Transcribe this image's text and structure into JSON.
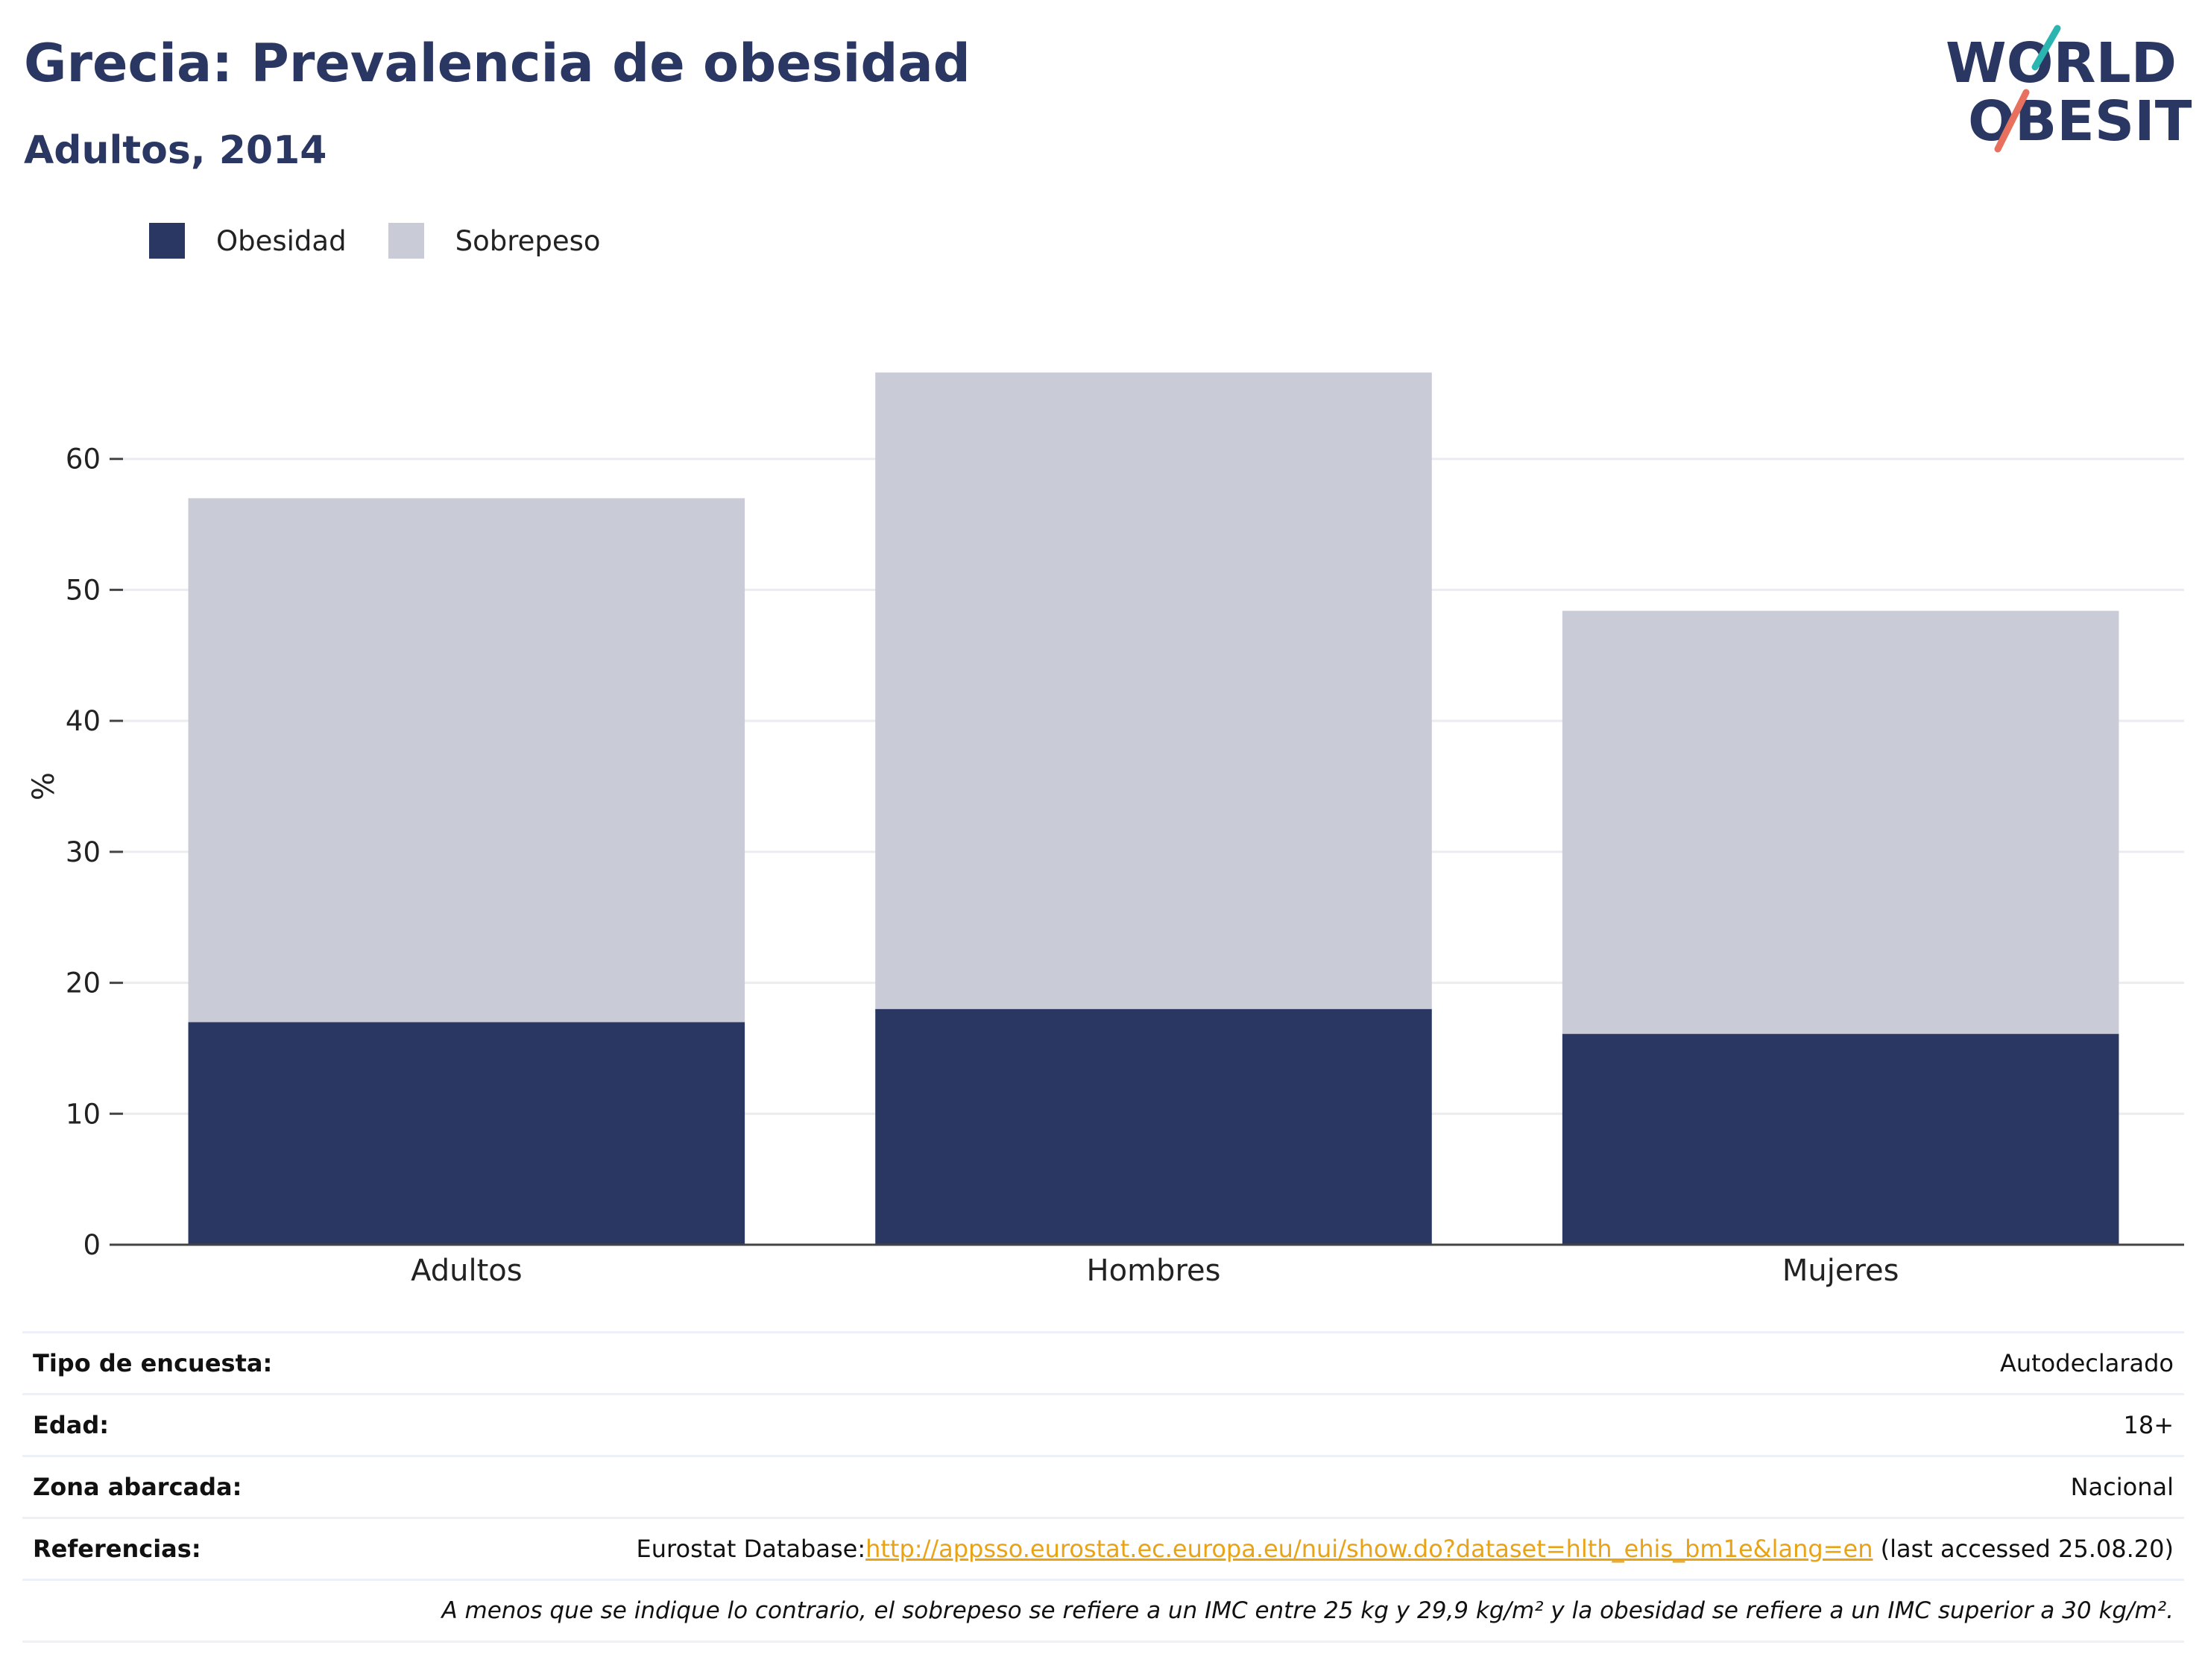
{
  "header": {
    "title": "Grecia: Prevalencia de obesidad",
    "subtitle": "Adultos, 2014"
  },
  "logo": {
    "line1": "WORLD",
    "line2": "OBESITY",
    "accent_teal": "#2bb5b1",
    "accent_coral": "#e8705e",
    "color": "#2a3763"
  },
  "chart_data": {
    "type": "bar",
    "stacked": true,
    "categories": [
      "Adultos",
      "Hombres",
      "Mujeres"
    ],
    "series": [
      {
        "name": "Obesidad",
        "values": [
          17,
          18,
          16.1
        ],
        "color": "#2a3763"
      },
      {
        "name": "Sobrepeso",
        "values": [
          40,
          48.6,
          32.3
        ],
        "color": "#c9cbd7"
      }
    ],
    "ylabel": "%",
    "ylim": [
      0,
      70
    ],
    "yticks": [
      0,
      10,
      20,
      30,
      40,
      50,
      60
    ],
    "grid": true,
    "legend_position": "top-left"
  },
  "metadata": {
    "rows": [
      {
        "label": "Tipo de encuesta:",
        "value": "Autodeclarado"
      },
      {
        "label": "Edad:",
        "value": "18+"
      },
      {
        "label": "Zona abarcada:",
        "value": "Nacional"
      }
    ],
    "references": {
      "label": "Referencias:",
      "prefix": "Eurostat Database:",
      "link": "http://appsso.eurostat.ec.europa.eu/nui/show.do?dataset=hlth_ehis_bm1e&lang=en",
      "suffix": " (last accessed 25.08.20)"
    },
    "note": "A menos que se indique lo contrario, el sobrepeso se refiere a un IMC entre 25 kg y 29,9 kg/m² y la obesidad se refiere a un IMC superior a 30 kg/m²."
  }
}
